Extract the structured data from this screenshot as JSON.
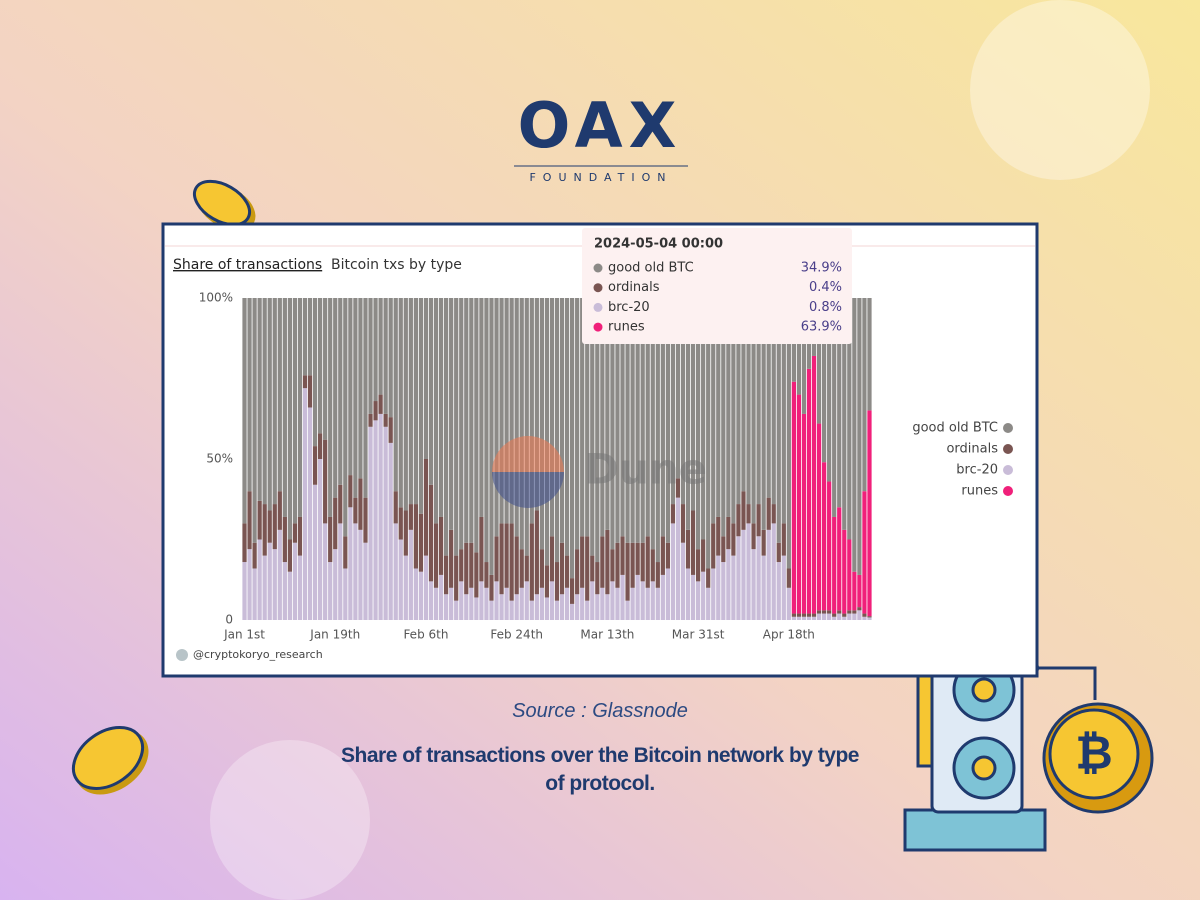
{
  "logo": {
    "name": "OAX",
    "tagline": "FOUNDATION"
  },
  "source": "Source : Glassnode",
  "caption": "Share of transactions over the Bitcoin network by type of protocol.",
  "credit": "@cryptokoryo_research",
  "watermark": "Dune",
  "chart_data": {
    "type": "stacked_bar",
    "title": "Share of transactions",
    "subtitle": "Bitcoin txs by type",
    "categories": [
      "Jan 1st",
      null,
      null,
      null,
      null,
      null,
      null,
      null,
      null,
      null,
      null,
      null,
      null,
      null,
      null,
      null,
      null,
      null,
      "Jan 19th",
      null,
      null,
      null,
      null,
      null,
      null,
      null,
      null,
      null,
      null,
      null,
      null,
      null,
      null,
      null,
      null,
      null,
      "Feb 6th",
      null,
      null,
      null,
      null,
      null,
      null,
      null,
      null,
      null,
      null,
      null,
      null,
      null,
      null,
      null,
      null,
      null,
      "Feb 24th",
      null,
      null,
      null,
      null,
      null,
      null,
      null,
      null,
      null,
      null,
      null,
      null,
      null,
      null,
      null,
      null,
      null,
      "Mar 13th",
      null,
      null,
      null,
      null,
      null,
      null,
      null,
      null,
      null,
      null,
      null,
      null,
      null,
      null,
      null,
      null,
      null,
      "Mar 31st",
      null,
      null,
      null,
      null,
      null,
      null,
      null,
      null,
      null,
      null,
      null,
      null,
      null,
      null,
      null,
      null,
      null,
      "Apr 18th",
      null,
      null,
      null,
      null,
      null,
      null,
      null,
      null,
      null,
      null,
      null,
      null,
      null,
      null,
      null,
      null
    ],
    "series": [
      {
        "name": "good old BTC",
        "color": "#8c8a87",
        "values": [
          70,
          60,
          76,
          63,
          64,
          66,
          64,
          60,
          68,
          75,
          70,
          68,
          24,
          24,
          46,
          42,
          44,
          68,
          62,
          58,
          74,
          55,
          62,
          56,
          62,
          36,
          32,
          30,
          36,
          37,
          60,
          65,
          66,
          64,
          64,
          67,
          50,
          58,
          70,
          68,
          80,
          72,
          80,
          78,
          76,
          76,
          79,
          68,
          82,
          86,
          74,
          70,
          70,
          70,
          74,
          78,
          80,
          70,
          66,
          78,
          83,
          74,
          82,
          76,
          80,
          87,
          78,
          74,
          74,
          80,
          82,
          74,
          72,
          78,
          76,
          74,
          76,
          76,
          76,
          76,
          74,
          78,
          82,
          74,
          76,
          64,
          56,
          64,
          72,
          66,
          78,
          75,
          84,
          70,
          68,
          74,
          68,
          70,
          64,
          60,
          64,
          70,
          64,
          72,
          62,
          64,
          76,
          70,
          84,
          26,
          30,
          36,
          22,
          18,
          39,
          51,
          57,
          68,
          65,
          72,
          75,
          85,
          86,
          60,
          34.9
        ]
      },
      {
        "name": "ordinals",
        "color": "#7a5552",
        "values": [
          12,
          18,
          8,
          12,
          16,
          10,
          14,
          12,
          14,
          10,
          6,
          12,
          4,
          10,
          12,
          8,
          26,
          14,
          16,
          12,
          10,
          10,
          8,
          16,
          14,
          4,
          6,
          6,
          4,
          8,
          10,
          10,
          14,
          8,
          20,
          18,
          30,
          30,
          20,
          18,
          12,
          18,
          14,
          10,
          16,
          14,
          14,
          20,
          8,
          8,
          14,
          22,
          20,
          24,
          18,
          12,
          8,
          24,
          26,
          12,
          10,
          14,
          12,
          16,
          10,
          8,
          14,
          16,
          20,
          8,
          10,
          16,
          20,
          10,
          14,
          12,
          18,
          14,
          10,
          12,
          16,
          10,
          8,
          12,
          8,
          6,
          6,
          12,
          12,
          20,
          10,
          10,
          6,
          14,
          12,
          8,
          10,
          10,
          10,
          12,
          6,
          8,
          10,
          8,
          10,
          6,
          6,
          10,
          6,
          1,
          1,
          1,
          1,
          1,
          1,
          1,
          1,
          1,
          1,
          1,
          1,
          1,
          1,
          1,
          0.4
        ]
      },
      {
        "name": "brc-20",
        "color": "#c9bcd8",
        "values": [
          18,
          22,
          16,
          25,
          20,
          24,
          22,
          28,
          18,
          15,
          24,
          20,
          72,
          66,
          42,
          50,
          30,
          18,
          22,
          30,
          16,
          35,
          30,
          28,
          24,
          60,
          62,
          64,
          60,
          55,
          30,
          25,
          20,
          28,
          16,
          15,
          20,
          12,
          10,
          14,
          8,
          10,
          6,
          12,
          8,
          10,
          7,
          12,
          10,
          6,
          12,
          8,
          10,
          6,
          8,
          10,
          12,
          6,
          8,
          10,
          7,
          12,
          6,
          8,
          10,
          5,
          8,
          10,
          6,
          12,
          8,
          10,
          8,
          12,
          10,
          14,
          6,
          10,
          14,
          12,
          10,
          12,
          10,
          14,
          16,
          30,
          38,
          24,
          16,
          14,
          12,
          15,
          10,
          16,
          20,
          18,
          22,
          20,
          26,
          28,
          30,
          22,
          26,
          20,
          28,
          30,
          18,
          20,
          10,
          1,
          1,
          1,
          1,
          1,
          2,
          2,
          2,
          1,
          2,
          1,
          2,
          2,
          3,
          1,
          0.8
        ]
      },
      {
        "name": "runes",
        "color": "#f0207a",
        "values": [
          0,
          0,
          0,
          0,
          0,
          0,
          0,
          0,
          0,
          0,
          0,
          0,
          0,
          0,
          0,
          0,
          0,
          0,
          0,
          0,
          0,
          0,
          0,
          0,
          0,
          0,
          0,
          0,
          0,
          0,
          0,
          0,
          0,
          0,
          0,
          0,
          0,
          0,
          0,
          0,
          0,
          0,
          0,
          0,
          0,
          0,
          0,
          0,
          0,
          0,
          0,
          0,
          0,
          0,
          0,
          0,
          0,
          0,
          0,
          0,
          0,
          0,
          0,
          0,
          0,
          0,
          0,
          0,
          0,
          0,
          0,
          0,
          0,
          0,
          0,
          0,
          0,
          0,
          0,
          0,
          0,
          0,
          0,
          0,
          0,
          0,
          0,
          0,
          0,
          0,
          0,
          0,
          0,
          0,
          0,
          0,
          0,
          0,
          0,
          0,
          0,
          0,
          0,
          0,
          0,
          0,
          0,
          0,
          0,
          72,
          68,
          62,
          76,
          80,
          58,
          46,
          40,
          30,
          32,
          26,
          22,
          12,
          10,
          38,
          63.9
        ]
      }
    ],
    "ylim": [
      0,
      100
    ],
    "yticks": [
      0,
      {
        "value": 50,
        "label": "50%"
      },
      {
        "value": 100,
        "label": "100%"
      }
    ],
    "grid": false,
    "legend": "right",
    "tooltip": {
      "title": "2024-05-04 00:00",
      "value_labels": [
        "34.9%",
        "0.4%",
        "0.8%",
        "63.9%"
      ]
    }
  }
}
